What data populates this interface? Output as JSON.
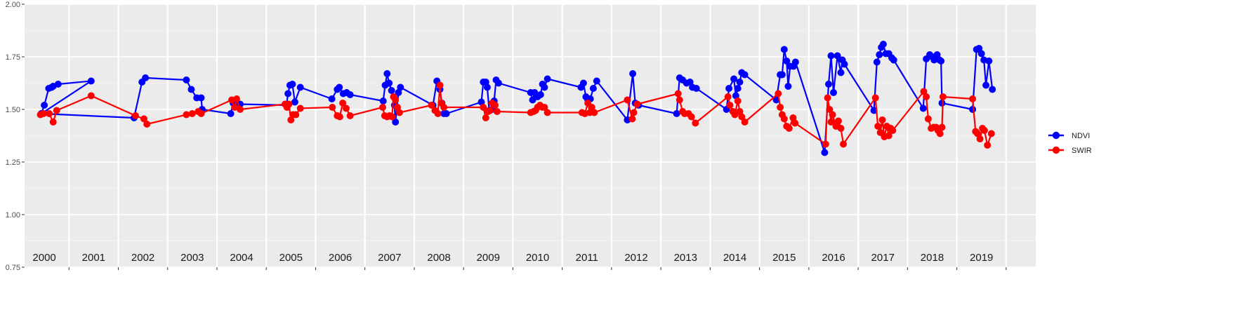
{
  "chart_data": {
    "type": "line",
    "title": "",
    "xlabel": "",
    "ylabel": "",
    "ylim": [
      0.75,
      2.0
    ],
    "y_ticks": [
      "0.75",
      "1.00",
      "1.25",
      "1.50",
      "1.75",
      "2.00"
    ],
    "y_tick_values": [
      0.75,
      1.0,
      1.25,
      1.5,
      1.75,
      2.0
    ],
    "grid": true,
    "legend_position": "right",
    "year_labels": [
      "2000",
      "2001",
      "2002",
      "2003",
      "2004",
      "2005",
      "2006",
      "2007",
      "2008",
      "2009",
      "2010",
      "2011",
      "2012",
      "2013",
      "2014",
      "2015",
      "2016",
      "2017",
      "2018",
      "2019"
    ],
    "x_unit": "decimal year",
    "xlim": [
      1999.6,
      2020.1
    ],
    "series": [
      {
        "name": "NDVI",
        "color": "#0000ff",
        "points": [
          [
            1999.94,
            1.48
          ],
          [
            2000.0,
            1.52
          ],
          [
            2000.09,
            1.6
          ],
          [
            2000.15,
            1.605
          ],
          [
            2000.18,
            1.61
          ],
          [
            2000.28,
            1.62
          ],
          [
            2000.95,
            1.635
          ],
          [
            1999.94,
            1.48
          ],
          [
            2001.82,
            1.46
          ],
          [
            2001.98,
            1.63
          ],
          [
            2002.05,
            1.65
          ],
          [
            2002.88,
            1.64
          ],
          [
            2002.98,
            1.595
          ],
          [
            2003.09,
            1.555
          ],
          [
            2003.18,
            1.555
          ],
          [
            2003.2,
            1.5
          ],
          [
            2003.78,
            1.48
          ],
          [
            2003.83,
            1.53
          ],
          [
            2003.88,
            1.52
          ],
          [
            2003.97,
            1.525
          ],
          [
            2004.91,
            1.52
          ],
          [
            2004.94,
            1.575
          ],
          [
            2004.98,
            1.615
          ],
          [
            2005.03,
            1.62
          ],
          [
            2005.08,
            1.535
          ],
          [
            2005.19,
            1.605
          ],
          [
            2005.83,
            1.55
          ],
          [
            2005.94,
            1.595
          ],
          [
            2005.98,
            1.605
          ],
          [
            2006.06,
            1.575
          ],
          [
            2006.13,
            1.58
          ],
          [
            2006.2,
            1.57
          ],
          [
            2006.87,
            1.54
          ],
          [
            2006.91,
            1.615
          ],
          [
            2006.95,
            1.67
          ],
          [
            2006.99,
            1.625
          ],
          [
            2007.04,
            1.59
          ],
          [
            2007.1,
            1.52
          ],
          [
            2007.12,
            1.44
          ],
          [
            2007.18,
            1.58
          ],
          [
            2007.22,
            1.605
          ],
          [
            2007.88,
            1.52
          ],
          [
            2007.96,
            1.635
          ],
          [
            2008.02,
            1.595
          ],
          [
            2008.06,
            1.53
          ],
          [
            2008.1,
            1.48
          ],
          [
            2008.15,
            1.48
          ],
          [
            2008.86,
            1.535
          ],
          [
            2008.9,
            1.63
          ],
          [
            2008.95,
            1.63
          ],
          [
            2008.98,
            1.605
          ],
          [
            2009.02,
            1.495
          ],
          [
            2009.08,
            1.5
          ],
          [
            2009.12,
            1.54
          ],
          [
            2009.16,
            1.64
          ],
          [
            2009.21,
            1.625
          ],
          [
            2009.86,
            1.58
          ],
          [
            2009.9,
            1.545
          ],
          [
            2009.94,
            1.58
          ],
          [
            2010.0,
            1.56
          ],
          [
            2010.06,
            1.57
          ],
          [
            2010.1,
            1.62
          ],
          [
            2010.14,
            1.605
          ],
          [
            2010.2,
            1.645
          ],
          [
            2010.88,
            1.605
          ],
          [
            2010.93,
            1.625
          ],
          [
            2010.98,
            1.56
          ],
          [
            2011.02,
            1.545
          ],
          [
            2011.07,
            1.55
          ],
          [
            2011.13,
            1.6
          ],
          [
            2011.2,
            1.635
          ],
          [
            2011.82,
            1.45
          ],
          [
            2011.93,
            1.67
          ],
          [
            2011.98,
            1.53
          ],
          [
            2012.05,
            1.52
          ],
          [
            2012.82,
            1.48
          ],
          [
            2012.88,
            1.65
          ],
          [
            2012.94,
            1.64
          ],
          [
            2013.02,
            1.625
          ],
          [
            2013.09,
            1.63
          ],
          [
            2013.14,
            1.605
          ],
          [
            2013.22,
            1.6
          ],
          [
            2013.83,
            1.5
          ],
          [
            2013.88,
            1.6
          ],
          [
            2013.98,
            1.645
          ],
          [
            2014.02,
            1.565
          ],
          [
            2014.06,
            1.6
          ],
          [
            2014.1,
            1.63
          ],
          [
            2014.14,
            1.675
          ],
          [
            2014.2,
            1.665
          ],
          [
            2014.84,
            1.545
          ],
          [
            2014.92,
            1.665
          ],
          [
            2014.96,
            1.665
          ],
          [
            2015.0,
            1.785
          ],
          [
            2015.05,
            1.73
          ],
          [
            2015.08,
            1.61
          ],
          [
            2015.12,
            1.705
          ],
          [
            2015.19,
            1.705
          ],
          [
            2015.23,
            1.725
          ],
          [
            2015.82,
            1.295
          ],
          [
            2015.9,
            1.62
          ],
          [
            2015.95,
            1.755
          ],
          [
            2016.0,
            1.58
          ],
          [
            2016.08,
            1.755
          ],
          [
            2016.15,
            1.675
          ],
          [
            2016.18,
            1.735
          ],
          [
            2016.22,
            1.715
          ],
          [
            2016.82,
            1.495
          ],
          [
            2016.88,
            1.725
          ],
          [
            2016.93,
            1.76
          ],
          [
            2016.97,
            1.795
          ],
          [
            2017.01,
            1.81
          ],
          [
            2017.06,
            1.765
          ],
          [
            2017.12,
            1.765
          ],
          [
            2017.18,
            1.745
          ],
          [
            2017.22,
            1.735
          ],
          [
            2017.82,
            1.505
          ],
          [
            2017.88,
            1.74
          ],
          [
            2017.95,
            1.76
          ],
          [
            2018.0,
            1.75
          ],
          [
            2018.04,
            1.735
          ],
          [
            2018.1,
            1.76
          ],
          [
            2018.15,
            1.735
          ],
          [
            2018.18,
            1.73
          ],
          [
            2018.2,
            1.53
          ],
          [
            2018.82,
            1.5
          ],
          [
            2018.9,
            1.785
          ],
          [
            2018.95,
            1.79
          ],
          [
            2019.0,
            1.765
          ],
          [
            2019.05,
            1.735
          ],
          [
            2019.09,
            1.615
          ],
          [
            2019.15,
            1.73
          ],
          [
            2019.22,
            1.595
          ]
        ]
      },
      {
        "name": "SWIR",
        "color": "#ff0000",
        "points": [
          [
            1999.92,
            1.475
          ],
          [
            1999.98,
            1.48
          ],
          [
            2000.1,
            1.48
          ],
          [
            2000.18,
            1.44
          ],
          [
            2000.25,
            1.495
          ],
          [
            2000.95,
            1.565
          ],
          [
            2001.85,
            1.47
          ],
          [
            2002.02,
            1.455
          ],
          [
            2002.08,
            1.43
          ],
          [
            2002.88,
            1.475
          ],
          [
            2003.0,
            1.48
          ],
          [
            2003.12,
            1.49
          ],
          [
            2003.18,
            1.48
          ],
          [
            2003.8,
            1.545
          ],
          [
            2003.86,
            1.51
          ],
          [
            2003.9,
            1.55
          ],
          [
            2003.97,
            1.5
          ],
          [
            2004.88,
            1.525
          ],
          [
            2004.92,
            1.51
          ],
          [
            2004.96,
            1.525
          ],
          [
            2005.0,
            1.45
          ],
          [
            2005.04,
            1.475
          ],
          [
            2005.1,
            1.475
          ],
          [
            2005.19,
            1.505
          ],
          [
            2005.84,
            1.51
          ],
          [
            2005.94,
            1.47
          ],
          [
            2005.99,
            1.465
          ],
          [
            2006.05,
            1.53
          ],
          [
            2006.12,
            1.505
          ],
          [
            2006.2,
            1.47
          ],
          [
            2006.86,
            1.51
          ],
          [
            2006.9,
            1.47
          ],
          [
            2006.95,
            1.465
          ],
          [
            2007.0,
            1.47
          ],
          [
            2007.05,
            1.465
          ],
          [
            2007.08,
            1.56
          ],
          [
            2007.12,
            1.545
          ],
          [
            2007.16,
            1.51
          ],
          [
            2007.2,
            1.485
          ],
          [
            2007.85,
            1.52
          ],
          [
            2007.92,
            1.495
          ],
          [
            2007.98,
            1.48
          ],
          [
            2008.02,
            1.615
          ],
          [
            2008.05,
            1.53
          ],
          [
            2008.1,
            1.51
          ],
          [
            2008.9,
            1.51
          ],
          [
            2008.95,
            1.46
          ],
          [
            2009.0,
            1.49
          ],
          [
            2009.04,
            1.495
          ],
          [
            2009.08,
            1.53
          ],
          [
            2009.14,
            1.52
          ],
          [
            2009.18,
            1.49
          ],
          [
            2009.86,
            1.485
          ],
          [
            2009.92,
            1.49
          ],
          [
            2009.96,
            1.495
          ],
          [
            2010.0,
            1.51
          ],
          [
            2010.05,
            1.52
          ],
          [
            2010.1,
            1.51
          ],
          [
            2010.14,
            1.51
          ],
          [
            2010.2,
            1.485
          ],
          [
            2010.9,
            1.485
          ],
          [
            2010.96,
            1.48
          ],
          [
            2011.02,
            1.53
          ],
          [
            2011.06,
            1.485
          ],
          [
            2011.1,
            1.51
          ],
          [
            2011.15,
            1.485
          ],
          [
            2011.82,
            1.545
          ],
          [
            2011.92,
            1.455
          ],
          [
            2011.95,
            1.485
          ],
          [
            2012.02,
            1.525
          ],
          [
            2012.85,
            1.575
          ],
          [
            2012.88,
            1.545
          ],
          [
            2012.94,
            1.49
          ],
          [
            2012.98,
            1.48
          ],
          [
            2013.06,
            1.48
          ],
          [
            2013.12,
            1.465
          ],
          [
            2013.2,
            1.435
          ],
          [
            2013.86,
            1.56
          ],
          [
            2013.9,
            1.52
          ],
          [
            2013.96,
            1.49
          ],
          [
            2014.0,
            1.475
          ],
          [
            2014.06,
            1.54
          ],
          [
            2014.1,
            1.49
          ],
          [
            2014.14,
            1.465
          ],
          [
            2014.2,
            1.44
          ],
          [
            2014.88,
            1.575
          ],
          [
            2014.92,
            1.51
          ],
          [
            2014.96,
            1.475
          ],
          [
            2015.0,
            1.455
          ],
          [
            2015.05,
            1.42
          ],
          [
            2015.1,
            1.41
          ],
          [
            2015.18,
            1.46
          ],
          [
            2015.22,
            1.435
          ],
          [
            2015.84,
            1.335
          ],
          [
            2015.88,
            1.555
          ],
          [
            2015.92,
            1.5
          ],
          [
            2015.95,
            1.44
          ],
          [
            2015.98,
            1.475
          ],
          [
            2016.05,
            1.42
          ],
          [
            2016.1,
            1.445
          ],
          [
            2016.15,
            1.41
          ],
          [
            2016.2,
            1.335
          ],
          [
            2016.85,
            1.555
          ],
          [
            2016.9,
            1.42
          ],
          [
            2016.95,
            1.39
          ],
          [
            2016.99,
            1.45
          ],
          [
            2017.03,
            1.37
          ],
          [
            2017.08,
            1.42
          ],
          [
            2017.12,
            1.375
          ],
          [
            2017.16,
            1.41
          ],
          [
            2017.2,
            1.4
          ],
          [
            2017.83,
            1.585
          ],
          [
            2017.88,
            1.56
          ],
          [
            2017.92,
            1.455
          ],
          [
            2017.98,
            1.41
          ],
          [
            2018.03,
            1.415
          ],
          [
            2018.08,
            1.415
          ],
          [
            2018.12,
            1.4
          ],
          [
            2018.16,
            1.385
          ],
          [
            2018.2,
            1.415
          ],
          [
            2018.22,
            1.56
          ],
          [
            2018.82,
            1.55
          ],
          [
            2018.88,
            1.395
          ],
          [
            2018.92,
            1.385
          ],
          [
            2018.97,
            1.36
          ],
          [
            2019.02,
            1.41
          ],
          [
            2019.06,
            1.4
          ],
          [
            2019.12,
            1.33
          ],
          [
            2019.2,
            1.385
          ]
        ]
      }
    ]
  }
}
